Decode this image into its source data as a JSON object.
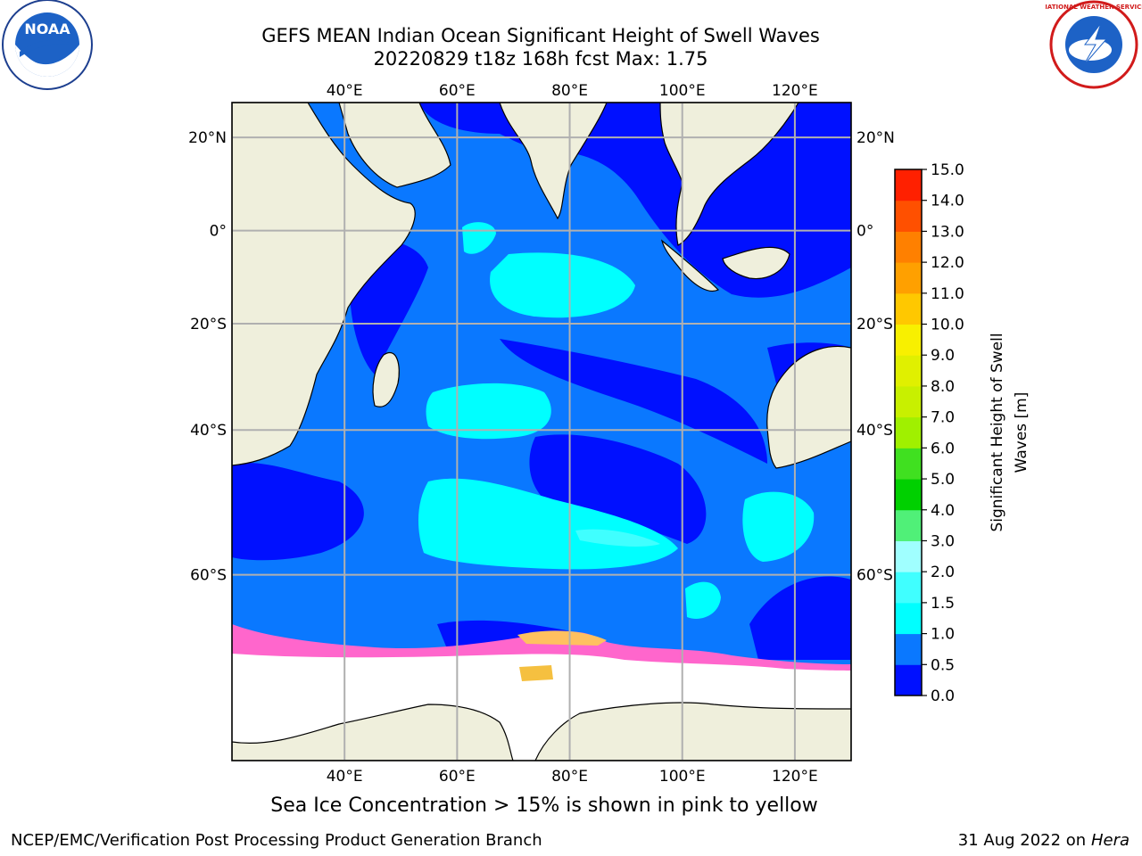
{
  "title": {
    "line1": "GEFS MEAN Indian Ocean Significant Height of Swell Waves",
    "line2": "20220829 t18z 168h fcst   Max: 1.75"
  },
  "map": {
    "lon_ticks": [
      "40°E",
      "60°E",
      "80°E",
      "100°E",
      "120°E"
    ],
    "lat_ticks": [
      "20°N",
      "0°",
      "20°S",
      "40°S",
      "60°S"
    ],
    "lon_range": [
      20,
      130
    ],
    "lat_range": [
      -75,
      27
    ],
    "ice_note": "Sea Ice Concentration > 15% is shown in pink to yellow"
  },
  "colorbar": {
    "label_line1": "Significant Height of Swell",
    "label_line2": "Waves [m]",
    "levels": [
      "0.0",
      "0.5",
      "1.0",
      "1.5",
      "2.0",
      "3.0",
      "4.0",
      "5.0",
      "6.0",
      "7.0",
      "8.0",
      "9.0",
      "10.0",
      "11.0",
      "12.0",
      "13.0",
      "14.0",
      "15.0"
    ],
    "colors": [
      "#0010ff",
      "#0a78ff",
      "#00ffff",
      "#40ffff",
      "#a0ffff",
      "#50f078",
      "#00d000",
      "#40e020",
      "#a0f000",
      "#c8f000",
      "#e0f000",
      "#f8f000",
      "#ffc800",
      "#ffa000",
      "#ff8000",
      "#ff5000",
      "#ff2000"
    ]
  },
  "footer": {
    "credit": "NCEP/EMC/Verification Post Processing Product Generation Branch",
    "date": "31 Aug 2022 on",
    "host": "Hera"
  },
  "logos": {
    "left": "NOAA",
    "right": "NATIONAL WEATHER SERVICE"
  }
}
